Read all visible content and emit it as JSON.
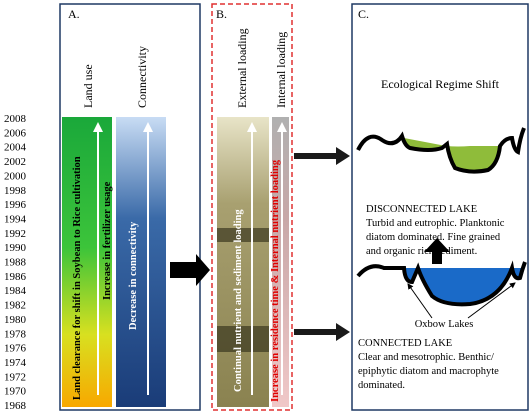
{
  "timeline": {
    "years": [
      2008,
      2006,
      2004,
      2002,
      2000,
      1998,
      1996,
      1994,
      1992,
      1990,
      1988,
      1986,
      1984,
      1982,
      1980,
      1978,
      1976,
      1974,
      1972,
      1970,
      1968
    ]
  },
  "panel_a": {
    "label": "A.",
    "land_use_heading": "Land use",
    "connectivity_heading": "Connectivity",
    "land_use_text_1": "Land clearance for shift in Soybean to Rice cultivation",
    "land_use_text_2": "Increase in fertilizer usage",
    "connectivity_text": "Decrease in connectivity"
  },
  "panel_b": {
    "label": "B.",
    "external_heading": "External loading",
    "internal_heading": "Internal loading",
    "external_text": "Continual nutrient and sediment loading",
    "internal_text": "Increase in residence time & Internal nutrient loading"
  },
  "panel_c": {
    "label": "C.",
    "title": "Ecological Regime Shift",
    "disconnected_title": "DISCONNECTED LAKE",
    "disconnected_lines": [
      "Turbid and eutrophic. Planktonic",
      "diatom dominated. Fine grained",
      "and organic rich sediment."
    ],
    "oxbow": "Oxbow Lakes",
    "connected_title": "CONNECTED LAKE",
    "connected_lines": [
      "Clear and mesotrophic. Benthic/",
      "epiphytic diatom and macrophyte",
      "dominated."
    ]
  }
}
